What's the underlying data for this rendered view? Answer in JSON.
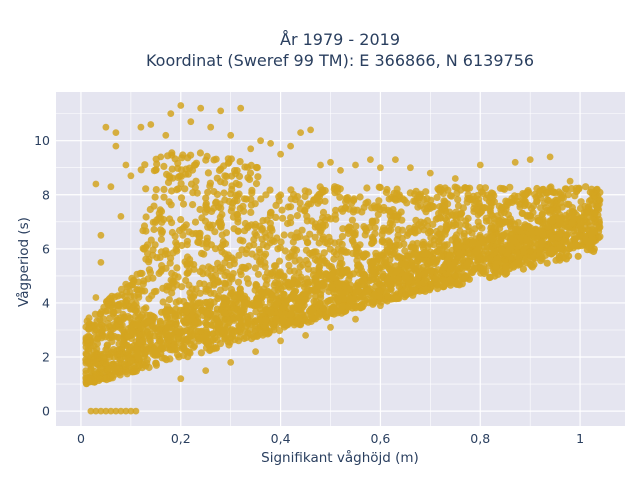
{
  "chart_data": {
    "type": "scatter",
    "title_line1": "År 1979 - 2019",
    "title_line2": "Koordinat (Sweref 99 TM): E 366866, N 6139756",
    "xlabel": "Signifikant våghöjd (m)",
    "ylabel": "Vågperiod (s)",
    "xlim": [
      -0.05,
      1.09
    ],
    "ylim": [
      -0.55,
      11.8
    ],
    "x_ticks": [
      0,
      0.2,
      0.4,
      0.6,
      0.8,
      1
    ],
    "x_tick_labels": [
      "0",
      "0,2",
      "0,4",
      "0,6",
      "0,8",
      "1"
    ],
    "y_ticks": [
      0,
      2,
      4,
      6,
      8,
      10
    ],
    "y_tick_labels": [
      "0",
      "2",
      "4",
      "6",
      "8",
      "10"
    ],
    "grid": true,
    "marker_color": "#D4A520",
    "background_color": "#E5E5F0",
    "series": [
      {
        "points": [
          [
            0.01,
            1.5
          ],
          [
            0.02,
            2.4
          ],
          [
            0.02,
            1.2
          ],
          [
            0.03,
            3.0
          ],
          [
            0.03,
            4.2
          ],
          [
            0.03,
            8.4
          ],
          [
            0.04,
            6.5
          ],
          [
            0.04,
            5.5
          ],
          [
            0.05,
            10.5
          ],
          [
            0.06,
            8.3
          ],
          [
            0.07,
            9.8
          ],
          [
            0.07,
            10.3
          ],
          [
            0.08,
            7.2
          ],
          [
            0.09,
            9.1
          ],
          [
            0.1,
            8.7
          ],
          [
            0.12,
            10.5
          ],
          [
            0.14,
            10.6
          ],
          [
            0.15,
            8.9
          ],
          [
            0.16,
            9.4
          ],
          [
            0.17,
            10.2
          ],
          [
            0.18,
            11.0
          ],
          [
            0.2,
            11.3
          ],
          [
            0.22,
            10.7
          ],
          [
            0.24,
            11.2
          ],
          [
            0.26,
            10.5
          ],
          [
            0.28,
            11.1
          ],
          [
            0.3,
            10.2
          ],
          [
            0.32,
            11.2
          ],
          [
            0.34,
            9.7
          ],
          [
            0.36,
            10.0
          ],
          [
            0.38,
            9.9
          ],
          [
            0.4,
            9.5
          ],
          [
            0.42,
            9.8
          ],
          [
            0.44,
            10.3
          ],
          [
            0.46,
            10.4
          ],
          [
            0.48,
            9.1
          ],
          [
            0.5,
            9.2
          ],
          [
            0.52,
            8.9
          ],
          [
            0.55,
            9.1
          ],
          [
            0.58,
            9.3
          ],
          [
            0.6,
            9.0
          ],
          [
            0.63,
            9.3
          ],
          [
            0.66,
            9.0
          ],
          [
            0.7,
            8.8
          ],
          [
            0.75,
            8.6
          ],
          [
            0.8,
            9.1
          ],
          [
            0.87,
            9.2
          ],
          [
            0.9,
            9.3
          ],
          [
            0.94,
            9.4
          ],
          [
            0.98,
            8.5
          ],
          [
            1.02,
            8.1
          ],
          [
            1.04,
            7.8
          ],
          [
            1.04,
            6.8
          ],
          [
            1.03,
            7.3
          ],
          [
            0.5,
            3.1
          ],
          [
            0.55,
            3.4
          ],
          [
            0.6,
            3.9
          ],
          [
            0.65,
            4.3
          ],
          [
            0.7,
            4.7
          ],
          [
            0.75,
            5.0
          ],
          [
            0.8,
            5.3
          ],
          [
            0.85,
            5.6
          ],
          [
            0.9,
            5.9
          ],
          [
            0.95,
            6.2
          ],
          [
            1.0,
            6.5
          ],
          [
            0.2,
            1.2
          ],
          [
            0.25,
            1.5
          ],
          [
            0.3,
            1.8
          ],
          [
            0.35,
            2.2
          ],
          [
            0.4,
            2.6
          ],
          [
            0.45,
            2.8
          ],
          [
            0.02,
            0.0
          ],
          [
            0.03,
            0.0
          ],
          [
            0.04,
            0.0
          ],
          [
            0.05,
            0.0
          ],
          [
            0.06,
            0.0
          ],
          [
            0.07,
            0.0
          ],
          [
            0.08,
            0.0
          ],
          [
            0.09,
            0.0
          ],
          [
            0.1,
            0.0
          ],
          [
            0.11,
            0.0
          ]
        ]
      }
    ]
  }
}
